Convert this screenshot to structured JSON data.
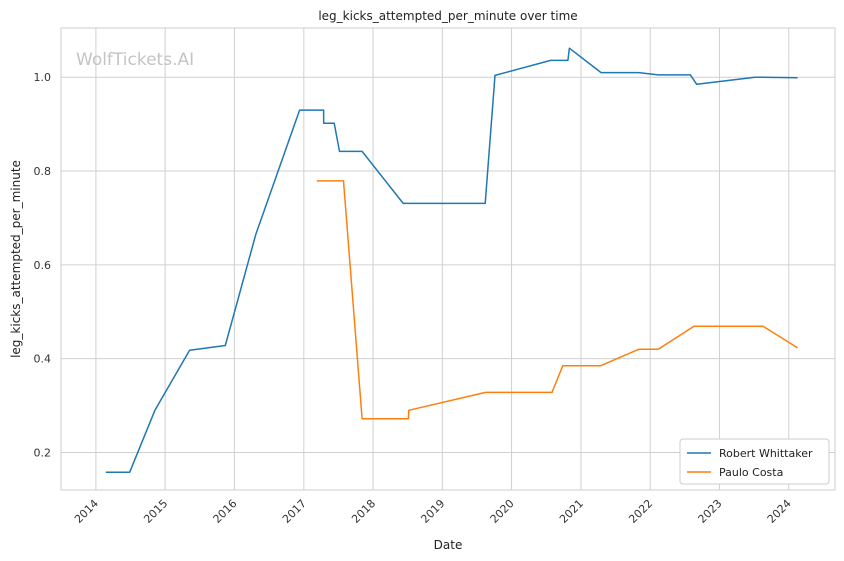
{
  "chart_data": {
    "type": "line",
    "title": "leg_kicks_attempted_per_minute over time",
    "xlabel": "Date",
    "ylabel": "leg_kicks_attempted_per_minute",
    "watermark": "WolfTickets.AI",
    "xlim": [
      "2013-07-01",
      "2024-09-01"
    ],
    "ylim": [
      0.12,
      1.105
    ],
    "x_ticks": [
      "2014",
      "2015",
      "2016",
      "2017",
      "2018",
      "2019",
      "2020",
      "2021",
      "2022",
      "2023",
      "2024"
    ],
    "y_ticks": [
      "0.2",
      "0.4",
      "0.6",
      "0.8",
      "1.0"
    ],
    "grid": true,
    "legend_position": "bottom-right",
    "series": [
      {
        "name": "Robert Whittaker",
        "color": "#1f77b4",
        "x": [
          "2014-02-22",
          "2014-06-28",
          "2014-11-08",
          "2015-05-10",
          "2015-11-14",
          "2016-04-23",
          "2016-12-10",
          "2017-04-15",
          "2017-04-16",
          "2017-06-10",
          "2017-07-08",
          "2017-11-04",
          "2018-06-09",
          "2019-08-15",
          "2019-10-06",
          "2020-07-25",
          "2020-10-24",
          "2020-11-01",
          "2021-04-17",
          "2021-11-01",
          "2022-02-12",
          "2022-08-01",
          "2022-09-03",
          "2023-07-08",
          "2024-02-17"
        ],
        "values": [
          0.158,
          0.158,
          0.29,
          0.418,
          0.428,
          0.665,
          0.93,
          0.93,
          0.902,
          0.902,
          0.842,
          0.842,
          0.731,
          0.731,
          1.004,
          1.036,
          1.036,
          1.062,
          1.01,
          1.01,
          1.005,
          1.005,
          0.985,
          1.0,
          0.999
        ]
      },
      {
        "name": "Paulo Costa",
        "color": "#ff7f0e",
        "x": [
          "2017-03-11",
          "2017-07-29",
          "2017-11-04",
          "2018-07-07",
          "2018-07-08",
          "2019-08-17",
          "2020-08-01",
          "2020-09-27",
          "2021-04-15",
          "2021-11-01",
          "2022-02-12",
          "2022-08-20",
          "2023-08-19",
          "2024-02-17"
        ],
        "values": [
          0.779,
          0.779,
          0.272,
          0.272,
          0.29,
          0.328,
          0.328,
          0.385,
          0.385,
          0.42,
          0.42,
          0.469,
          0.469,
          0.423
        ]
      }
    ]
  }
}
